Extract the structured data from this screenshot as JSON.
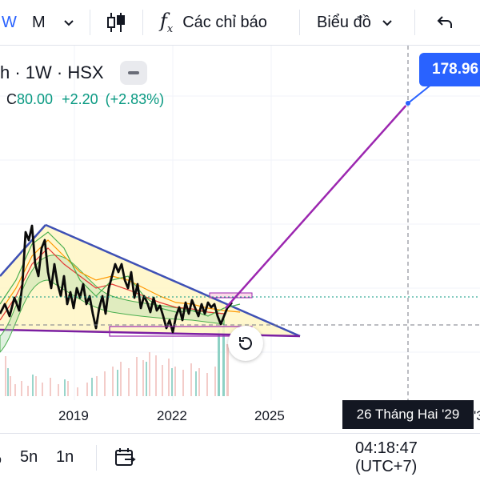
{
  "toolbar": {
    "interval_short": "W",
    "interval_label": "M",
    "indicators_label": "Các chỉ báo",
    "chart_type_label": "Biểu đồ"
  },
  "legend": {
    "title": "h · 1W · HSX",
    "close_prefix": "C",
    "close_value": "80.00",
    "change": "+2.20",
    "change_pct": "(+2.83%)"
  },
  "price_tag": "178.96",
  "crosshair_date": "26 Tháng Hai '29",
  "x_axis": {
    "labels": [
      "2019",
      "2022",
      "2025"
    ],
    "partial_right": "'3"
  },
  "bottom_bar": {
    "range_5d": "5n",
    "range_1d": "1n",
    "clock": "04:18:47 (UTC+7)"
  },
  "colors": {
    "accent": "#2962ff",
    "up": "#089981",
    "trend": "#9c27b0",
    "triangle_fill": "#fff6c4"
  },
  "icons": {
    "candles": "candlestick-icon",
    "indicators": "function-icon",
    "chart_type": "chevron-down-icon",
    "undo": "undo-icon",
    "reset": "reset-icon",
    "compare": "date-range-icon"
  }
}
